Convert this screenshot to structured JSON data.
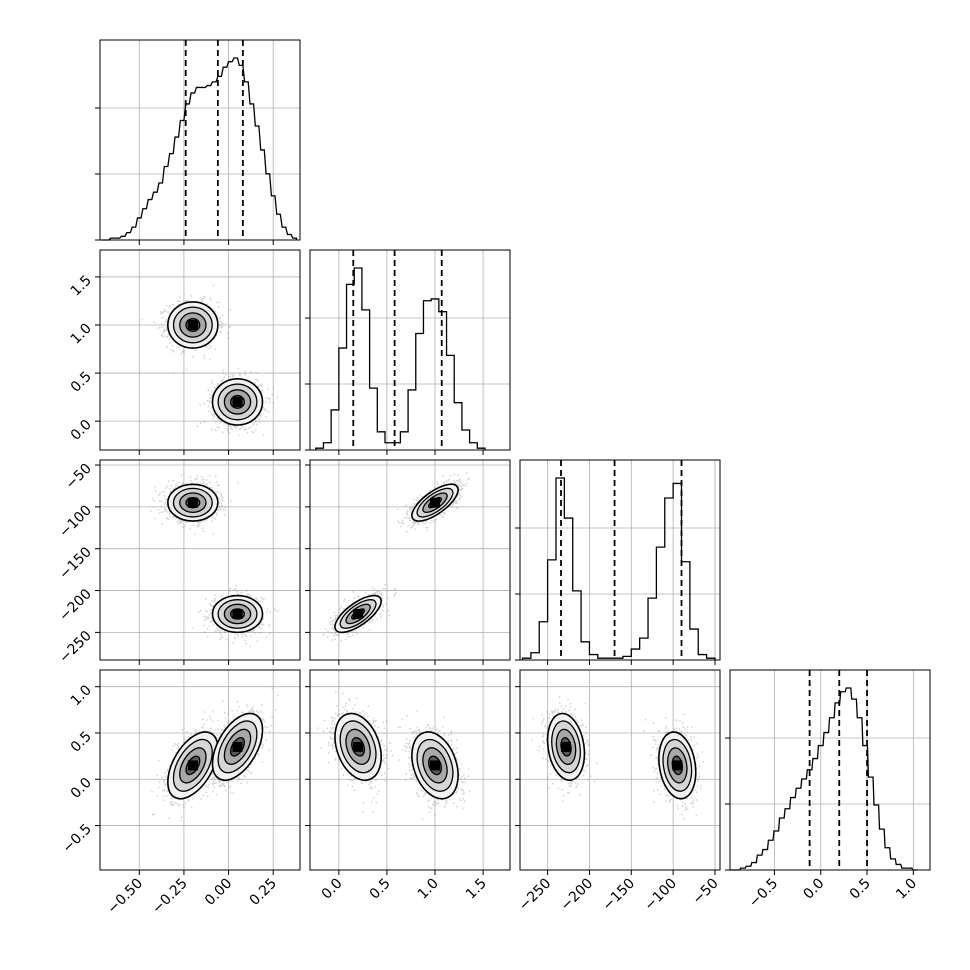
{
  "chart_data": {
    "type": "corner",
    "grid": true,
    "colors": {
      "line": "#000000",
      "grid": "#b0b0b0",
      "scatter": "#8a8a8a",
      "density": "#000000"
    },
    "parameters": [
      {
        "range": [
          -0.72,
          0.4
        ],
        "ticks": [
          -0.5,
          -0.25,
          0.0,
          0.25
        ],
        "tick_labels": [
          "−0.50",
          "−0.25",
          "0.00",
          "0.25"
        ],
        "quantiles": [
          -0.24,
          -0.06,
          0.08
        ],
        "hist": [
          [
            -0.7,
            0
          ],
          [
            -0.68,
            0
          ],
          [
            -0.65,
            0.01
          ],
          [
            -0.62,
            0.01
          ],
          [
            -0.59,
            0.02
          ],
          [
            -0.56,
            0.04
          ],
          [
            -0.53,
            0.07
          ],
          [
            -0.5,
            0.12
          ],
          [
            -0.47,
            0.17
          ],
          [
            -0.44,
            0.22
          ],
          [
            -0.41,
            0.26
          ],
          [
            -0.38,
            0.31
          ],
          [
            -0.35,
            0.4
          ],
          [
            -0.32,
            0.47
          ],
          [
            -0.29,
            0.56
          ],
          [
            -0.26,
            0.65
          ],
          [
            -0.23,
            0.74
          ],
          [
            -0.2,
            0.8
          ],
          [
            -0.17,
            0.83
          ],
          [
            -0.14,
            0.83
          ],
          [
            -0.11,
            0.84
          ],
          [
            -0.08,
            0.86
          ],
          [
            -0.05,
            0.89
          ],
          [
            -0.02,
            0.94
          ],
          [
            0.01,
            0.97
          ],
          [
            0.04,
            0.99
          ],
          [
            0.07,
            0.95
          ],
          [
            0.1,
            0.86
          ],
          [
            0.13,
            0.74
          ],
          [
            0.16,
            0.62
          ],
          [
            0.19,
            0.49
          ],
          [
            0.22,
            0.36
          ],
          [
            0.25,
            0.24
          ],
          [
            0.28,
            0.14
          ],
          [
            0.31,
            0.07
          ],
          [
            0.34,
            0.03
          ],
          [
            0.37,
            0.01
          ]
        ]
      },
      {
        "range": [
          -0.3,
          1.78
        ],
        "ticks": [
          0.0,
          0.5,
          1.0,
          1.5
        ],
        "tick_labels": [
          "0.0",
          "0.5",
          "1.0",
          "1.5"
        ],
        "quantiles": [
          0.15,
          0.58,
          1.07
        ],
        "hist": [
          [
            -0.2,
            0.01
          ],
          [
            -0.12,
            0.04
          ],
          [
            -0.04,
            0.22
          ],
          [
            0.04,
            0.56
          ],
          [
            0.12,
            0.91
          ],
          [
            0.2,
            1.0
          ],
          [
            0.28,
            0.77
          ],
          [
            0.36,
            0.34
          ],
          [
            0.44,
            0.1
          ],
          [
            0.52,
            0.04
          ],
          [
            0.6,
            0.04
          ],
          [
            0.68,
            0.1
          ],
          [
            0.76,
            0.33
          ],
          [
            0.84,
            0.64
          ],
          [
            0.92,
            0.82
          ],
          [
            1.0,
            0.83
          ],
          [
            1.08,
            0.76
          ],
          [
            1.16,
            0.52
          ],
          [
            1.24,
            0.26
          ],
          [
            1.32,
            0.11
          ],
          [
            1.4,
            0.04
          ],
          [
            1.48,
            0.01
          ]
        ]
      },
      {
        "range": [
          -283,
          -44
        ],
        "ticks": [
          -250,
          -200,
          -150,
          -100,
          -50
        ],
        "tick_labels": [
          "−250",
          "−200",
          "−150",
          "−100",
          "−50"
        ],
        "quantiles": [
          -234,
          -170,
          -90
        ],
        "hist": [
          [
            -275,
            0.01
          ],
          [
            -265,
            0.04
          ],
          [
            -255,
            0.21
          ],
          [
            -245,
            0.55
          ],
          [
            -235,
            1.0
          ],
          [
            -225,
            0.78
          ],
          [
            -215,
            0.38
          ],
          [
            -205,
            0.1
          ],
          [
            -195,
            0.03
          ],
          [
            -185,
            0.01
          ],
          [
            -175,
            0.01
          ],
          [
            -165,
            0.01
          ],
          [
            -155,
            0.02
          ],
          [
            -145,
            0.06
          ],
          [
            -135,
            0.12
          ],
          [
            -125,
            0.34
          ],
          [
            -115,
            0.62
          ],
          [
            -105,
            0.89
          ],
          [
            -95,
            0.97
          ],
          [
            -85,
            0.54
          ],
          [
            -75,
            0.17
          ],
          [
            -65,
            0.03
          ],
          [
            -55,
            0.01
          ]
        ]
      },
      {
        "range": [
          -0.98,
          1.18
        ],
        "ticks": [
          -0.5,
          0.0,
          0.5,
          1.0
        ],
        "tick_labels": [
          "−0.5",
          "0.0",
          "0.5",
          "1.0"
        ],
        "quantiles": [
          -0.12,
          0.2,
          0.5
        ],
        "hist": [
          [
            -0.95,
            0
          ],
          [
            -0.9,
            0
          ],
          [
            -0.84,
            0.01
          ],
          [
            -0.78,
            0.02
          ],
          [
            -0.72,
            0.04
          ],
          [
            -0.66,
            0.08
          ],
          [
            -0.6,
            0.11
          ],
          [
            -0.54,
            0.16
          ],
          [
            -0.48,
            0.21
          ],
          [
            -0.42,
            0.28
          ],
          [
            -0.36,
            0.33
          ],
          [
            -0.3,
            0.39
          ],
          [
            -0.24,
            0.44
          ],
          [
            -0.18,
            0.49
          ],
          [
            -0.12,
            0.54
          ],
          [
            -0.06,
            0.6
          ],
          [
            0.0,
            0.67
          ],
          [
            0.06,
            0.74
          ],
          [
            0.12,
            0.82
          ],
          [
            0.18,
            0.9
          ],
          [
            0.24,
            0.96
          ],
          [
            0.3,
            0.98
          ],
          [
            0.36,
            0.92
          ],
          [
            0.42,
            0.82
          ],
          [
            0.48,
            0.67
          ],
          [
            0.54,
            0.5
          ],
          [
            0.6,
            0.35
          ],
          [
            0.66,
            0.22
          ],
          [
            0.72,
            0.12
          ],
          [
            0.78,
            0.06
          ],
          [
            0.84,
            0.03
          ],
          [
            0.9,
            0.01
          ],
          [
            0.96,
            0.01
          ],
          [
            1.02,
            0
          ]
        ]
      }
    ],
    "modes": [
      {
        "mean": [
          -0.2,
          1.0,
          -95,
          0.15
        ],
        "sd": [
          0.07,
          0.12,
          11,
          0.18
        ]
      },
      {
        "mean": [
          0.05,
          0.2,
          -228,
          0.35
        ],
        "sd": [
          0.07,
          0.12,
          11,
          0.18
        ]
      }
    ],
    "correlations": {
      "0-1": 0,
      "0-2": 0,
      "0-3": 0.5,
      "1-2": 0.7,
      "1-3": -0.3,
      "2-3": -0.2
    }
  }
}
